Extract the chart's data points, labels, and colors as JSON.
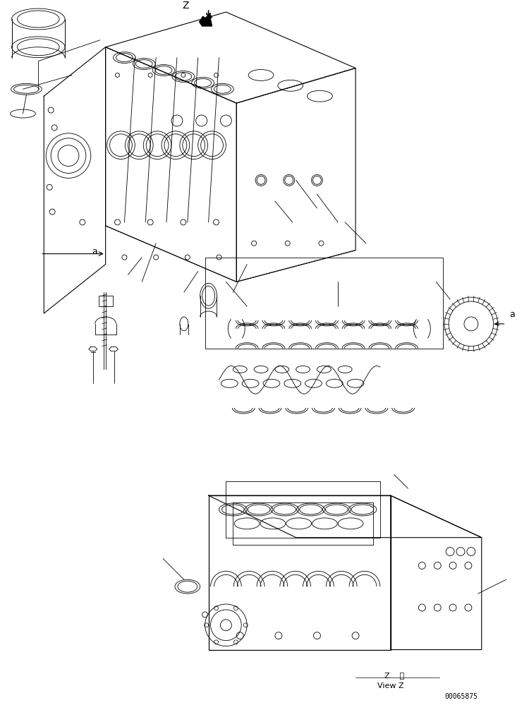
{
  "bg_color": "#ffffff",
  "line_color": "#000000",
  "fig_width": 7.5,
  "fig_height": 9.99,
  "dpi": 100,
  "title": "",
  "bottom_label1": "Z    視",
  "bottom_label2": "View Z",
  "part_number": "00065875",
  "label_Z": "Z",
  "label_a1": "a",
  "label_a2": "a",
  "arrow_label": "↓"
}
